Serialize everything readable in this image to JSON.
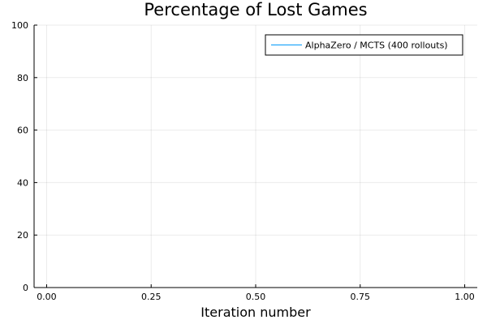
{
  "chart_data": {
    "type": "line",
    "title": "Percentage of Lost Games",
    "xlabel": "Iteration number",
    "ylabel": "",
    "xlim": [
      -0.03,
      1.03
    ],
    "ylim": [
      0,
      100
    ],
    "xticks": [
      0,
      0.25,
      0.5,
      0.75,
      1
    ],
    "xtick_labels": [
      "0.00",
      "0.25",
      "0.50",
      "0.75",
      "1.00"
    ],
    "yticks": [
      0,
      20,
      40,
      60,
      80,
      100
    ],
    "ytick_labels": [
      "0",
      "20",
      "40",
      "60",
      "80",
      "100"
    ],
    "grid": true,
    "legend_position": "top-right",
    "series": [
      {
        "name": "AlphaZero / MCTS (400 rollouts)",
        "color": "#009af9",
        "x": [],
        "y": []
      }
    ]
  }
}
